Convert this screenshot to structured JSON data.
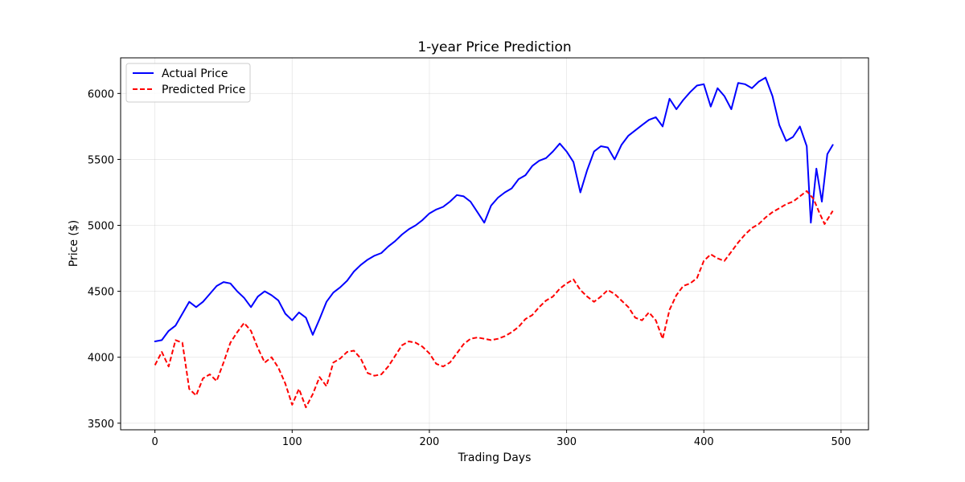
{
  "chart_data": {
    "type": "line",
    "title": "1-year Price Prediction",
    "xlabel": "Trading Days",
    "ylabel": "Price ($)",
    "xlim": [
      -25,
      520
    ],
    "ylim": [
      3450,
      6270
    ],
    "xticks": [
      0,
      100,
      200,
      300,
      400,
      500
    ],
    "yticks": [
      3500,
      4000,
      4500,
      5000,
      5500,
      6000
    ],
    "grid": true,
    "legend_position": "top-left",
    "series": [
      {
        "name": "Actual Price",
        "color": "#0000ff",
        "style": "solid",
        "points": [
          [
            0,
            4120
          ],
          [
            5,
            4130
          ],
          [
            10,
            4200
          ],
          [
            15,
            4240
          ],
          [
            20,
            4330
          ],
          [
            25,
            4420
          ],
          [
            30,
            4380
          ],
          [
            35,
            4420
          ],
          [
            40,
            4480
          ],
          [
            45,
            4540
          ],
          [
            50,
            4570
          ],
          [
            55,
            4560
          ],
          [
            60,
            4500
          ],
          [
            65,
            4450
          ],
          [
            70,
            4380
          ],
          [
            75,
            4460
          ],
          [
            80,
            4500
          ],
          [
            85,
            4470
          ],
          [
            90,
            4430
          ],
          [
            95,
            4330
          ],
          [
            100,
            4280
          ],
          [
            105,
            4340
          ],
          [
            110,
            4300
          ],
          [
            115,
            4170
          ],
          [
            120,
            4290
          ],
          [
            125,
            4420
          ],
          [
            130,
            4490
          ],
          [
            135,
            4530
          ],
          [
            140,
            4580
          ],
          [
            145,
            4650
          ],
          [
            150,
            4700
          ],
          [
            155,
            4740
          ],
          [
            160,
            4770
          ],
          [
            165,
            4790
          ],
          [
            170,
            4840
          ],
          [
            175,
            4880
          ],
          [
            180,
            4930
          ],
          [
            185,
            4970
          ],
          [
            190,
            5000
          ],
          [
            195,
            5040
          ],
          [
            200,
            5090
          ],
          [
            205,
            5120
          ],
          [
            210,
            5140
          ],
          [
            215,
            5180
          ],
          [
            220,
            5230
          ],
          [
            225,
            5220
          ],
          [
            230,
            5180
          ],
          [
            235,
            5100
          ],
          [
            240,
            5020
          ],
          [
            245,
            5150
          ],
          [
            250,
            5210
          ],
          [
            255,
            5250
          ],
          [
            260,
            5280
          ],
          [
            265,
            5350
          ],
          [
            270,
            5380
          ],
          [
            275,
            5450
          ],
          [
            280,
            5490
          ],
          [
            285,
            5510
          ],
          [
            290,
            5560
          ],
          [
            295,
            5620
          ],
          [
            300,
            5560
          ],
          [
            305,
            5480
          ],
          [
            310,
            5250
          ],
          [
            315,
            5420
          ],
          [
            320,
            5560
          ],
          [
            325,
            5600
          ],
          [
            330,
            5590
          ],
          [
            335,
            5500
          ],
          [
            340,
            5610
          ],
          [
            345,
            5680
          ],
          [
            350,
            5720
          ],
          [
            355,
            5760
          ],
          [
            360,
            5800
          ],
          [
            365,
            5820
          ],
          [
            370,
            5750
          ],
          [
            375,
            5960
          ],
          [
            380,
            5880
          ],
          [
            385,
            5950
          ],
          [
            390,
            6010
          ],
          [
            395,
            6060
          ],
          [
            400,
            6070
          ],
          [
            405,
            5900
          ],
          [
            410,
            6040
          ],
          [
            415,
            5980
          ],
          [
            420,
            5880
          ],
          [
            425,
            6080
          ],
          [
            430,
            6070
          ],
          [
            435,
            6040
          ],
          [
            440,
            6090
          ],
          [
            445,
            6120
          ],
          [
            450,
            5980
          ],
          [
            455,
            5760
          ],
          [
            460,
            5640
          ],
          [
            465,
            5670
          ],
          [
            470,
            5750
          ],
          [
            475,
            5600
          ],
          [
            478,
            5020
          ],
          [
            482,
            5430
          ],
          [
            486,
            5180
          ],
          [
            490,
            5540
          ],
          [
            494,
            5610
          ]
        ]
      },
      {
        "name": "Predicted Price",
        "color": "#ff0000",
        "style": "dashed",
        "points": [
          [
            0,
            3940
          ],
          [
            5,
            4040
          ],
          [
            10,
            3930
          ],
          [
            15,
            4130
          ],
          [
            20,
            4110
          ],
          [
            25,
            3760
          ],
          [
            30,
            3710
          ],
          [
            35,
            3840
          ],
          [
            40,
            3870
          ],
          [
            45,
            3820
          ],
          [
            50,
            3960
          ],
          [
            55,
            4110
          ],
          [
            60,
            4190
          ],
          [
            65,
            4260
          ],
          [
            70,
            4200
          ],
          [
            75,
            4070
          ],
          [
            80,
            3960
          ],
          [
            85,
            4000
          ],
          [
            90,
            3920
          ],
          [
            95,
            3800
          ],
          [
            100,
            3640
          ],
          [
            105,
            3760
          ],
          [
            110,
            3620
          ],
          [
            115,
            3720
          ],
          [
            120,
            3850
          ],
          [
            125,
            3780
          ],
          [
            130,
            3960
          ],
          [
            135,
            3990
          ],
          [
            140,
            4040
          ],
          [
            145,
            4050
          ],
          [
            150,
            3990
          ],
          [
            155,
            3880
          ],
          [
            160,
            3860
          ],
          [
            165,
            3870
          ],
          [
            170,
            3930
          ],
          [
            175,
            4010
          ],
          [
            180,
            4090
          ],
          [
            185,
            4120
          ],
          [
            190,
            4110
          ],
          [
            195,
            4080
          ],
          [
            200,
            4030
          ],
          [
            205,
            3950
          ],
          [
            210,
            3930
          ],
          [
            215,
            3960
          ],
          [
            220,
            4030
          ],
          [
            225,
            4100
          ],
          [
            230,
            4140
          ],
          [
            235,
            4150
          ],
          [
            240,
            4140
          ],
          [
            245,
            4130
          ],
          [
            250,
            4140
          ],
          [
            255,
            4160
          ],
          [
            260,
            4190
          ],
          [
            265,
            4230
          ],
          [
            270,
            4290
          ],
          [
            275,
            4320
          ],
          [
            280,
            4380
          ],
          [
            285,
            4430
          ],
          [
            290,
            4460
          ],
          [
            295,
            4520
          ],
          [
            300,
            4560
          ],
          [
            305,
            4590
          ],
          [
            310,
            4510
          ],
          [
            315,
            4460
          ],
          [
            320,
            4420
          ],
          [
            325,
            4460
          ],
          [
            330,
            4510
          ],
          [
            335,
            4480
          ],
          [
            340,
            4430
          ],
          [
            345,
            4380
          ],
          [
            350,
            4300
          ],
          [
            355,
            4280
          ],
          [
            360,
            4340
          ],
          [
            365,
            4280
          ],
          [
            370,
            4140
          ],
          [
            375,
            4360
          ],
          [
            380,
            4470
          ],
          [
            385,
            4540
          ],
          [
            390,
            4560
          ],
          [
            395,
            4600
          ],
          [
            400,
            4730
          ],
          [
            405,
            4780
          ],
          [
            410,
            4750
          ],
          [
            415,
            4730
          ],
          [
            420,
            4800
          ],
          [
            425,
            4870
          ],
          [
            430,
            4930
          ],
          [
            435,
            4980
          ],
          [
            440,
            5010
          ],
          [
            445,
            5060
          ],
          [
            450,
            5100
          ],
          [
            455,
            5130
          ],
          [
            460,
            5160
          ],
          [
            465,
            5180
          ],
          [
            470,
            5220
          ],
          [
            475,
            5260
          ],
          [
            480,
            5200
          ],
          [
            484,
            5100
          ],
          [
            488,
            5010
          ],
          [
            491,
            5060
          ],
          [
            494,
            5110
          ]
        ]
      }
    ]
  }
}
